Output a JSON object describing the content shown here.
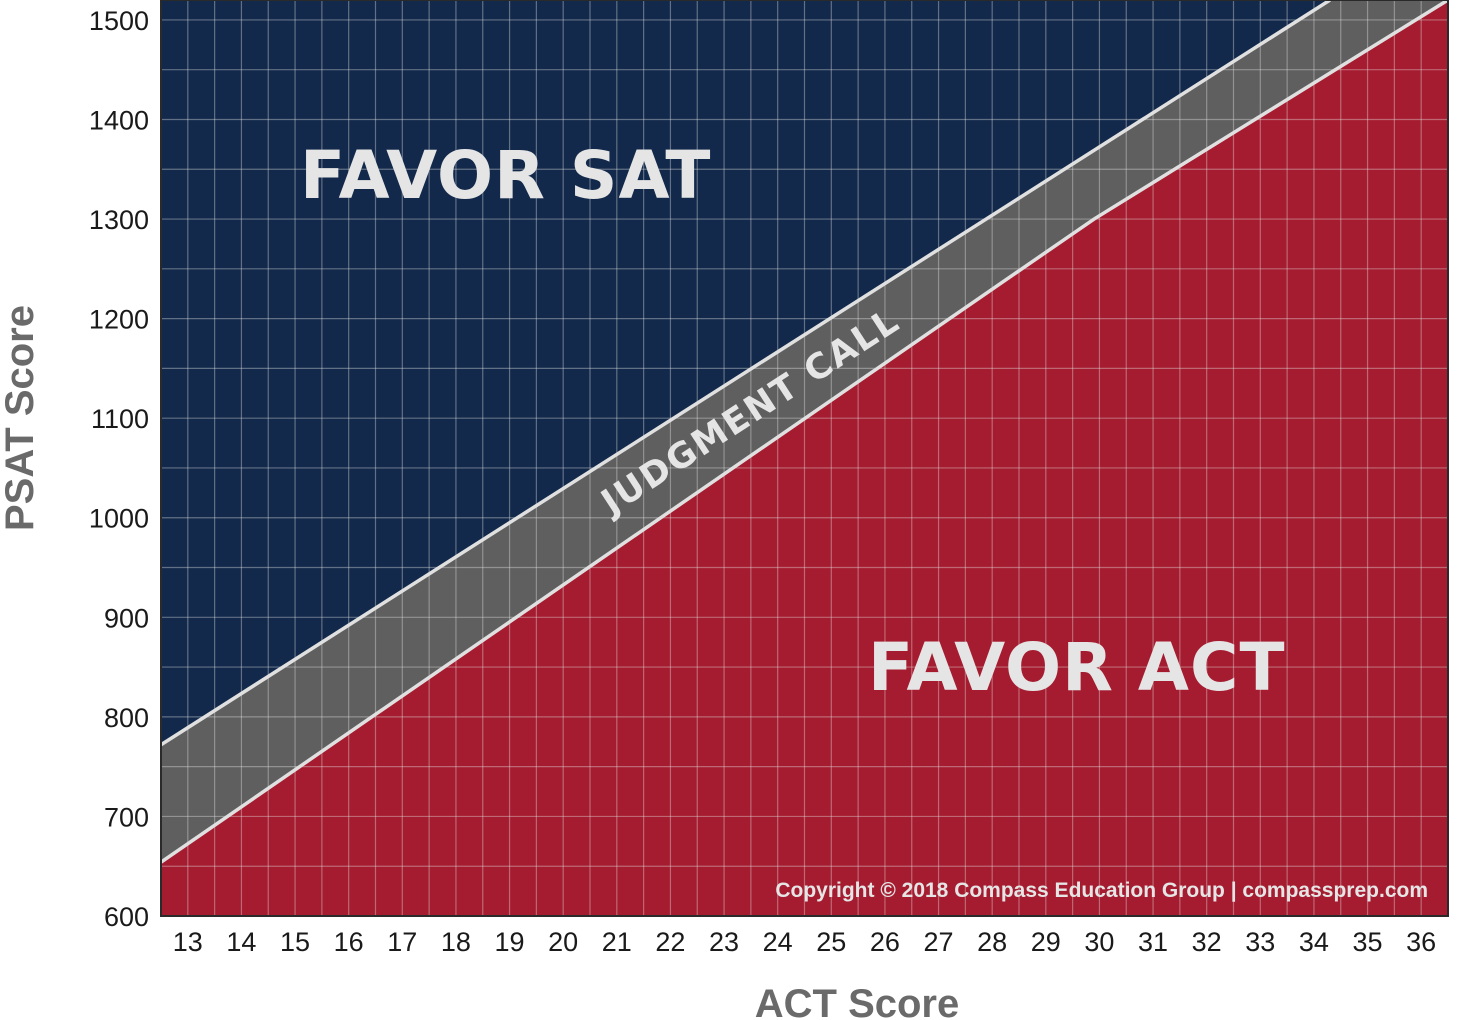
{
  "chart_data": {
    "type": "area",
    "xlabel": "ACT Score",
    "ylabel": "PSAT Score",
    "xlim": [
      12,
      36
    ],
    "ylim": [
      600,
      1520
    ],
    "x_ticks": [
      13,
      14,
      15,
      16,
      17,
      18,
      19,
      20,
      21,
      22,
      23,
      24,
      25,
      26,
      27,
      28,
      29,
      30,
      31,
      32,
      33,
      34,
      35,
      36
    ],
    "y_ticks": [
      600,
      700,
      800,
      900,
      1000,
      1100,
      1200,
      1300,
      1400,
      1500
    ],
    "grid": true,
    "regions": [
      {
        "label": "FAVOR SAT",
        "color": "#13294b"
      },
      {
        "label": "JUDGMENT CALL",
        "color": "#5f5f5f"
      },
      {
        "label": "FAVOR ACT",
        "color": "#a51c30"
      }
    ],
    "boundaries": {
      "upper": {
        "x": [
          12,
          33.8
        ],
        "y": [
          772,
          1520
        ]
      },
      "lower": {
        "x": [
          12,
          29.4,
          36
        ],
        "y": [
          654,
          1300,
          1520
        ]
      }
    },
    "annotation": "Copyright © 2018 Compass Education Group | compassprep.com"
  }
}
